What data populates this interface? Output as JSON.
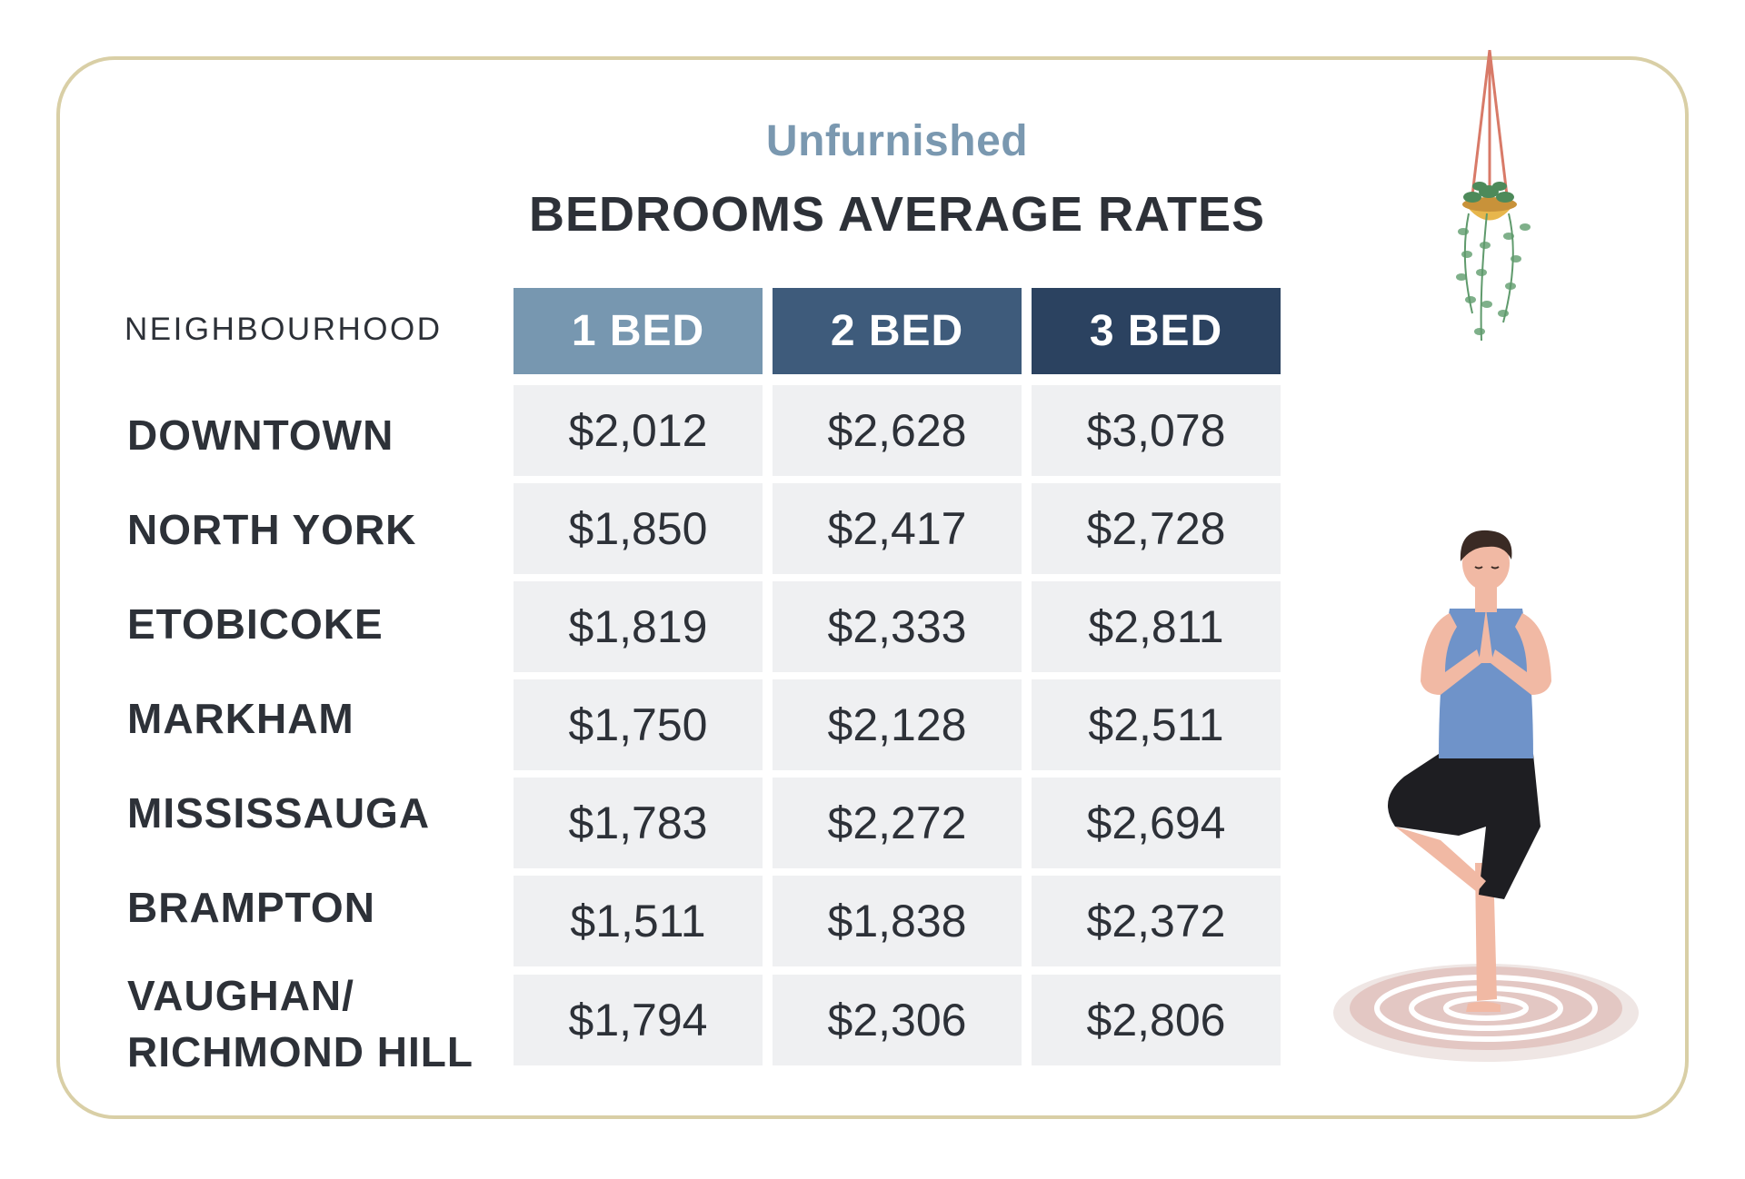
{
  "header": {
    "subtitle": "Unfurnished",
    "title": "BEDROOMS AVERAGE RATES"
  },
  "table": {
    "row_header": "NEIGHBOURHOOD",
    "columns": [
      {
        "label": "1 BED",
        "color": "#7797b0"
      },
      {
        "label": "2 BED",
        "color": "#3e5b7b"
      },
      {
        "label": "3 BED",
        "color": "#2b4260"
      }
    ],
    "rows": [
      {
        "name": "DOWNTOWN",
        "values": [
          "$2,012",
          "$2,628",
          "$3,078"
        ]
      },
      {
        "name": "NORTH YORK",
        "values": [
          "$1,850",
          "$2,417",
          "$2,728"
        ]
      },
      {
        "name": "ETOBICOKE",
        "values": [
          "$1,819",
          "$2,333",
          "$2,811"
        ]
      },
      {
        "name": "MARKHAM",
        "values": [
          "$1,750",
          "$2,128",
          "$2,511"
        ]
      },
      {
        "name": "MISSISSAUGA",
        "values": [
          "$1,783",
          "$2,272",
          "$2,694"
        ]
      },
      {
        "name": "BRAMPTON",
        "values": [
          "$1,511",
          "$1,838",
          "$2,372"
        ]
      },
      {
        "name": "VAUGHAN/\nRICHMOND HILL",
        "values": [
          "$1,794",
          "$2,306",
          "$2,806"
        ]
      }
    ]
  },
  "colors": {
    "border": "#d9cfa6",
    "cell_bg": "#eff0f2",
    "text": "#2d3138",
    "subtitle": "#7a98b0"
  }
}
